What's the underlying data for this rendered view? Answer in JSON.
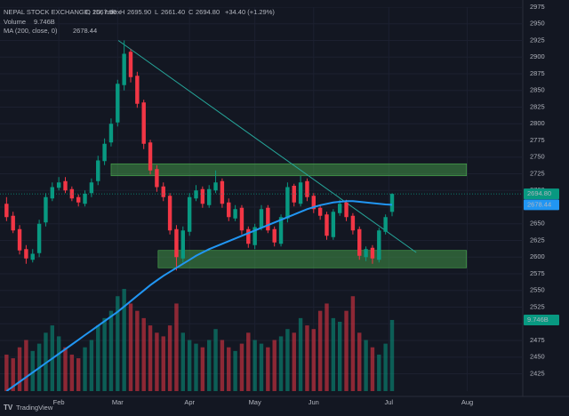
{
  "chart_data": {
    "type": "candlestick",
    "header": {
      "title": "NEPAL STOCK EXCHANGE, 1D, index",
      "o_label": "O",
      "open": "2667.90",
      "h_label": "H",
      "high": "2695.90",
      "l_label": "L",
      "low": "2661.40",
      "c_label": "C",
      "close": "2694.80",
      "change": "+34.40 (+1.29%)"
    },
    "legend": [
      {
        "name": "Volume",
        "value": "9.746B",
        "color": "#089981"
      },
      {
        "name": "MA (200, close, 0)",
        "value": "2678.44",
        "color": "#2196f3"
      }
    ],
    "tags": {
      "price": "2694.80",
      "ma": "2678.44",
      "volume": "9.746B"
    },
    "footer": "TradingView",
    "up_color": "#089981",
    "down_color": "#f23645",
    "ma_color": "#2196f3",
    "open": [
      2680,
      2662,
      2642,
      2612,
      2596,
      2606,
      2652,
      2688,
      2704,
      2714,
      2702,
      2690,
      2680,
      2696,
      2714,
      2744,
      2772,
      2802,
      2858,
      2908,
      2872,
      2832,
      2772,
      2732,
      2706,
      2692,
      2642,
      2598,
      2638,
      2688,
      2702,
      2678,
      2700,
      2714,
      2682,
      2658,
      2674,
      2642,
      2618,
      2644,
      2674,
      2642,
      2620,
      2658,
      2707,
      2680,
      2714,
      2692,
      2674,
      2664,
      2630,
      2666,
      2682,
      2662,
      2642,
      2600,
      2614,
      2596,
      2638,
      2667.9
    ],
    "high": [
      2690,
      2668,
      2648,
      2618,
      2612,
      2656,
      2696,
      2712,
      2720,
      2720,
      2706,
      2694,
      2700,
      2718,
      2752,
      2778,
      2808,
      2866,
      2925,
      2912,
      2878,
      2836,
      2776,
      2738,
      2712,
      2696,
      2648,
      2646,
      2696,
      2708,
      2706,
      2708,
      2730,
      2718,
      2688,
      2678,
      2678,
      2646,
      2650,
      2678,
      2678,
      2646,
      2664,
      2712,
      2710,
      2722,
      2718,
      2696,
      2678,
      2668,
      2672,
      2686,
      2686,
      2666,
      2646,
      2616,
      2618,
      2644,
      2664,
      2695.9
    ],
    "low": [
      2654,
      2636,
      2604,
      2590,
      2592,
      2600,
      2646,
      2684,
      2700,
      2696,
      2684,
      2676,
      2676,
      2690,
      2708,
      2738,
      2766,
      2796,
      2850,
      2862,
      2824,
      2762,
      2724,
      2698,
      2684,
      2634,
      2580,
      2592,
      2632,
      2684,
      2674,
      2674,
      2696,
      2674,
      2654,
      2654,
      2634,
      2614,
      2612,
      2640,
      2636,
      2616,
      2616,
      2652,
      2676,
      2676,
      2684,
      2666,
      2656,
      2626,
      2626,
      2662,
      2654,
      2634,
      2596,
      2594,
      2590,
      2592,
      2634,
      2661.4
    ],
    "close": [
      2660,
      2640,
      2610,
      2598,
      2605,
      2650,
      2690,
      2705,
      2712,
      2700,
      2688,
      2682,
      2695,
      2712,
      2745,
      2770,
      2800,
      2860,
      2905,
      2870,
      2830,
      2770,
      2730,
      2705,
      2690,
      2640,
      2600,
      2640,
      2690,
      2700,
      2680,
      2702,
      2712,
      2680,
      2660,
      2672,
      2640,
      2620,
      2645,
      2672,
      2640,
      2622,
      2660,
      2705,
      2682,
      2712,
      2690,
      2672,
      2662,
      2632,
      2668,
      2680,
      2660,
      2640,
      2602,
      2612,
      2598,
      2640,
      2660,
      2694.8
    ],
    "volume": [
      5,
      4.5,
      6,
      7,
      5.5,
      6.5,
      8,
      9,
      7.5,
      6,
      5,
      4.5,
      6,
      7,
      9,
      10,
      11,
      13,
      14,
      12,
      11,
      10,
      9,
      8,
      7.5,
      9,
      12,
      8,
      7,
      6.5,
      6,
      7,
      8.5,
      7,
      6,
      5.5,
      6.5,
      8,
      7,
      6.5,
      6,
      7,
      7.5,
      8.5,
      8,
      10,
      9,
      8.5,
      11,
      12,
      10,
      9.5,
      11,
      13,
      8,
      7,
      6,
      5,
      6.5,
      9.746
    ],
    "ma": [
      2399,
      2406,
      2413,
      2420,
      2427,
      2434,
      2441,
      2448,
      2455,
      2462,
      2469,
      2476,
      2483,
      2490,
      2497,
      2504,
      2511,
      2518,
      2526,
      2534,
      2542,
      2550,
      2558,
      2565,
      2572,
      2578,
      2584,
      2590,
      2596,
      2602,
      2607,
      2612,
      2616,
      2620,
      2624,
      2628,
      2632,
      2636,
      2640,
      2644,
      2648,
      2652,
      2656,
      2660,
      2664,
      2668,
      2672,
      2675,
      2678,
      2680,
      2682,
      2683,
      2684,
      2684,
      2683,
      2682,
      2681,
      2680,
      2679,
      2678.44
    ],
    "xlim": [
      -1,
      79
    ],
    "xticks": [
      {
        "value": 8,
        "label": "Feb"
      },
      {
        "value": 17,
        "label": "Mar"
      },
      {
        "value": 28,
        "label": "Apr"
      },
      {
        "value": 38,
        "label": "May"
      },
      {
        "value": 47,
        "label": "Jun"
      },
      {
        "value": 58.5,
        "label": "Jul"
      },
      {
        "value": 70.5,
        "label": "Aug"
      }
    ],
    "ylim": [
      2399,
      2975
    ],
    "yticks": [
      2425,
      2450,
      2475,
      2500,
      2525,
      2550,
      2575,
      2600,
      2625,
      2650,
      2675,
      2700,
      2725,
      2750,
      2775,
      2800,
      2825,
      2850,
      2875,
      2900,
      2925,
      2950,
      2975
    ],
    "volume_ylim": [
      0,
      52.6
    ],
    "zones": [
      {
        "x": [
          16,
          70.4
        ],
        "y": [
          2722,
          2740
        ]
      },
      {
        "x": [
          23.2,
          70.4
        ],
        "y": [
          2584,
          2610
        ]
      }
    ],
    "trendline": {
      "x": [
        17.1,
        62.7
      ],
      "y": [
        2925,
        2607
      ]
    },
    "grid": true
  }
}
